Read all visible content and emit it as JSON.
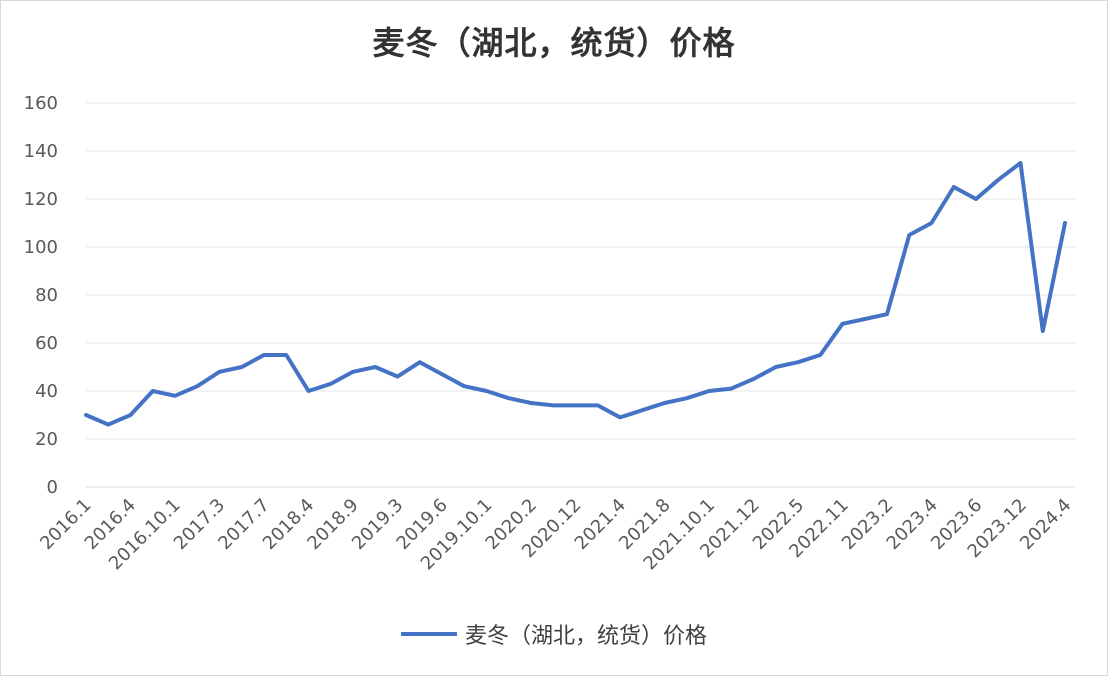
{
  "chart_data": {
    "type": "line",
    "title": "麦冬（湖北，统货）价格",
    "xlabel": "",
    "ylabel": "",
    "ylim": [
      0,
      160
    ],
    "yticks": [
      0,
      20,
      40,
      60,
      80,
      100,
      120,
      140,
      160
    ],
    "grid": true,
    "legend_position": "bottom",
    "line_color": "#4472c4",
    "x_tick_labels": [
      "2016.1",
      "2016.4",
      "2016.10.1",
      "2017.3",
      "2017.7",
      "2018.4",
      "2018.9",
      "2019.3",
      "2019.6",
      "2019.10.1",
      "2020.2",
      "2020.12",
      "2021.4",
      "2021.8",
      "2021.10.1",
      "2021.12",
      "2022.5",
      "2022.11",
      "2023.2",
      "2023.4",
      "2023.6",
      "2023.12",
      "2024.4"
    ],
    "series": [
      {
        "name": "麦冬（湖北，统货）价格",
        "values": [
          30,
          26,
          30,
          40,
          38,
          42,
          48,
          50,
          55,
          55,
          40,
          43,
          48,
          50,
          46,
          52,
          47,
          42,
          40,
          37,
          35,
          34,
          34,
          34,
          29,
          32,
          35,
          37,
          40,
          41,
          45,
          50,
          52,
          55,
          68,
          70,
          72,
          105,
          110,
          125,
          120,
          128,
          135,
          65,
          110
        ]
      }
    ]
  }
}
